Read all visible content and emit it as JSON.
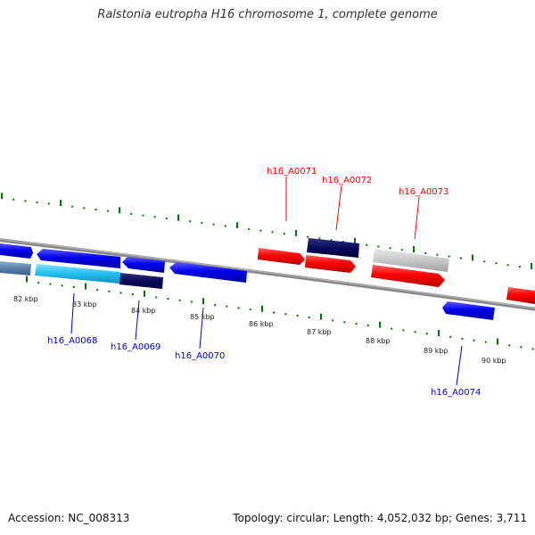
{
  "title": "Ralstonia eutropha H16 chromosome 1, complete genome",
  "footer": {
    "accession": "Accession: NC_008313",
    "stats": "Topology: circular; Length: 4,052,032 bp; Genes: 3,711"
  },
  "colors": {
    "forward_strand": "#ff0000",
    "reverse_strand": "#0000ff",
    "backbone": "#888888",
    "ruler": "#007700",
    "tick_label": "#222222"
  },
  "ruler_labels": [
    "82 kbp",
    "83 kbp",
    "84 kbp",
    "85 kbp",
    "86 kbp",
    "87 kbp",
    "88 kbp",
    "89 kbp",
    "90 kbp"
  ],
  "gene_labels": {
    "forward": [
      "h16_A0071",
      "h16_A0072",
      "h16_A0073"
    ],
    "reverse": [
      "h16_A0068",
      "h16_A0069",
      "h16_A0070",
      "h16_A0074"
    ]
  }
}
